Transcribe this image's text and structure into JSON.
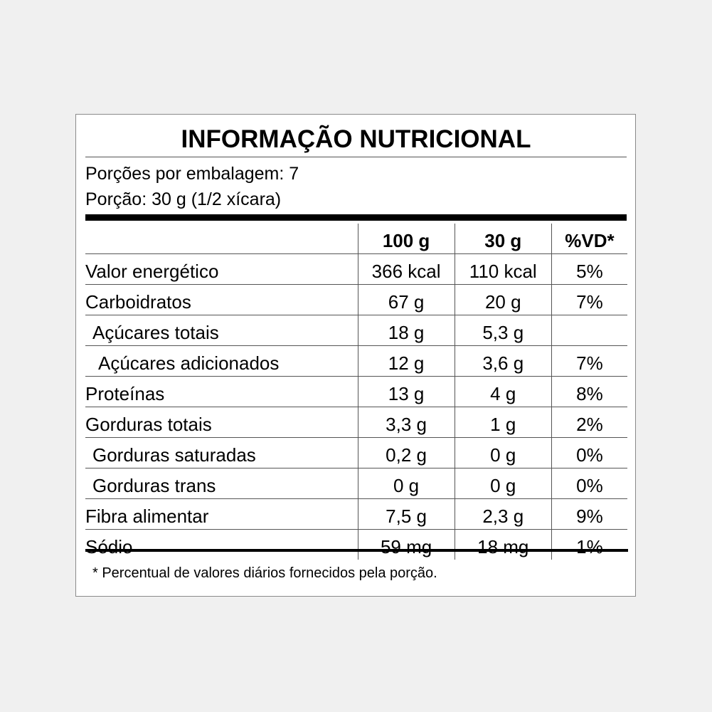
{
  "title": "INFORMAÇÃO NUTRICIONAL",
  "servings_per_package": "Porções por embalagem: 7",
  "serving_size": "Porção: 30 g (1/2 xícara)",
  "columns": [
    "",
    "100 g",
    "30 g",
    "%VD*"
  ],
  "rows": [
    {
      "name": "Valor energético",
      "per100": "366 kcal",
      "per30": "110 kcal",
      "vd": "5%",
      "indent": 0
    },
    {
      "name": "Carboidratos",
      "per100": "67 g",
      "per30": "20 g",
      "vd": "7%",
      "indent": 0
    },
    {
      "name": "Açúcares totais",
      "per100": "18 g",
      "per30": "5,3 g",
      "vd": "",
      "indent": 1
    },
    {
      "name": "Açúcares adicionados",
      "per100": "12 g",
      "per30": "3,6 g",
      "vd": "7%",
      "indent": 2
    },
    {
      "name": "Proteínas",
      "per100": "13 g",
      "per30": "4 g",
      "vd": "8%",
      "indent": 0
    },
    {
      "name": "Gorduras totais",
      "per100": "3,3 g",
      "per30": "1 g",
      "vd": "2%",
      "indent": 0
    },
    {
      "name": "Gorduras saturadas",
      "per100": "0,2 g",
      "per30": "0 g",
      "vd": "0%",
      "indent": 1
    },
    {
      "name": "Gorduras trans",
      "per100": "0 g",
      "per30": "0 g",
      "vd": "0%",
      "indent": 1
    },
    {
      "name": "Fibra alimentar",
      "per100": "7,5 g",
      "per30": "2,3 g",
      "vd": "9%",
      "indent": 0
    },
    {
      "name": "Sódio",
      "per100": "59 mg",
      "per30": "18 mg",
      "vd": "1%",
      "indent": 0
    }
  ],
  "footnote": "* Percentual de valores diários fornecidos pela porção.",
  "colors": {
    "background": "#f0f0f0",
    "panel": "#ffffff",
    "text": "#000000",
    "rule": "#555555"
  }
}
